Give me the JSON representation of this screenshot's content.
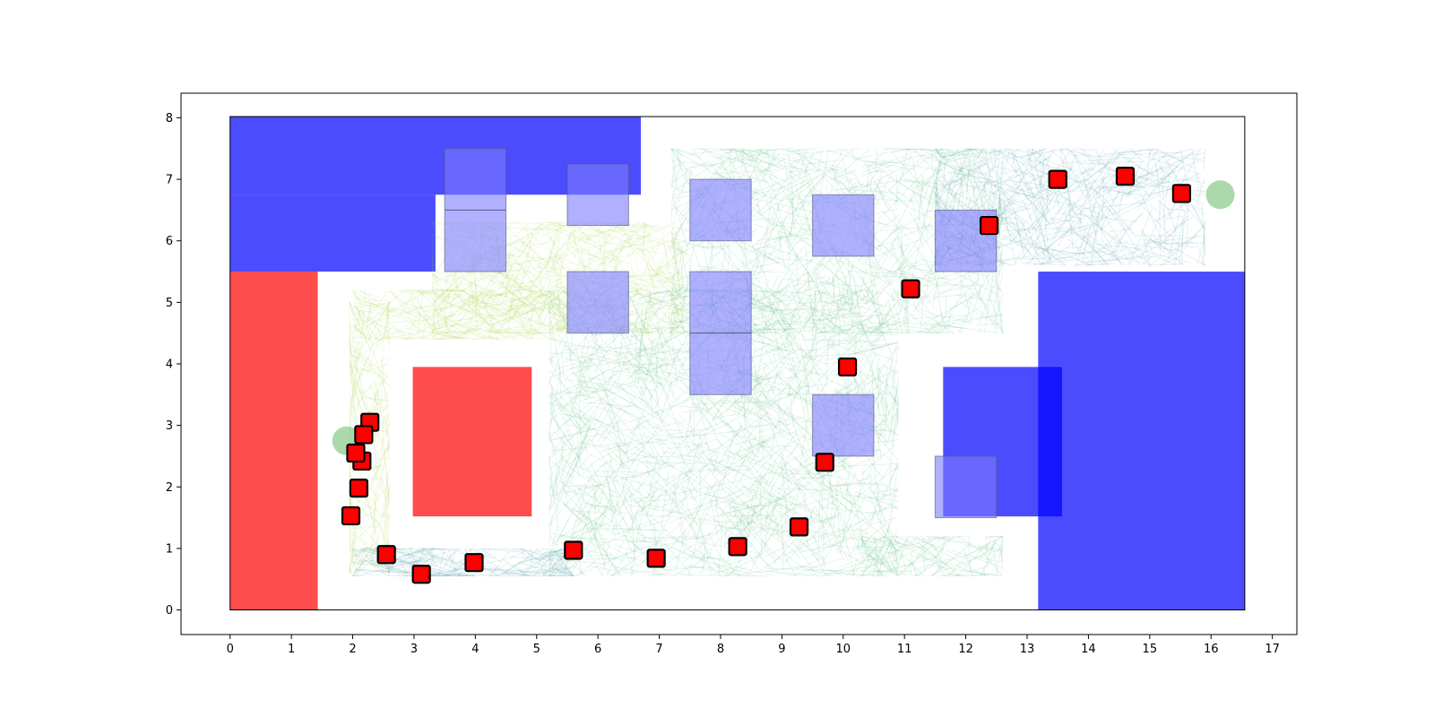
{
  "chart_data": {
    "type": "scatter",
    "title": "",
    "xlabel": "",
    "ylabel": "",
    "xlim": [
      -0.8,
      17.4
    ],
    "ylim": [
      -0.4,
      8.4
    ],
    "field": {
      "x": [
        0,
        16.55
      ],
      "y": [
        0,
        8.02
      ]
    },
    "grid": false,
    "x_ticks": [
      "0",
      "1",
      "2",
      "3",
      "4",
      "5",
      "6",
      "7",
      "8",
      "9",
      "10",
      "11",
      "12",
      "13",
      "14",
      "15",
      "16",
      "17"
    ],
    "y_ticks": [
      "0",
      "1",
      "2",
      "3",
      "4",
      "5",
      "6",
      "7",
      "8"
    ],
    "colors": {
      "blue_zone": "#0000ff",
      "red_zone": "#ff0000",
      "obstacle": "#7b7bff",
      "trajectory_a": "#3cb371",
      "trajectory_b": "#9acd32",
      "trajectory_c": "#2e8b9a",
      "waypoint": "#ff0000",
      "waypoint_edge": "#000000",
      "goal": "#8fcc8f"
    },
    "zones": [
      {
        "name": "blue-zone-top-left",
        "color": "blue",
        "x0": 0,
        "y0": 6.75,
        "x1": 6.7,
        "y1": 8.02
      },
      {
        "name": "blue-zone-left-block",
        "color": "blue",
        "x0": 0,
        "y0": 5.5,
        "x1": 3.35,
        "y1": 6.75
      },
      {
        "name": "red-zone-left",
        "color": "red",
        "x0": 0,
        "y0": 0,
        "x1": 1.43,
        "y1": 5.5
      },
      {
        "name": "red-zone-center",
        "color": "red",
        "x0": 2.98,
        "y0": 1.52,
        "x1": 4.92,
        "y1": 3.95
      },
      {
        "name": "blue-zone-right",
        "color": "blue",
        "x0": 13.18,
        "y0": 0,
        "x1": 16.55,
        "y1": 5.5
      },
      {
        "name": "blue-zone-right-inner",
        "color": "blue",
        "x0": 11.63,
        "y0": 1.52,
        "x1": 13.57,
        "y1": 3.95
      }
    ],
    "obstacles": [
      {
        "x0": 3.5,
        "y0": 5.5,
        "x1": 4.5,
        "y1": 7.5,
        "divider_y": 6.5
      },
      {
        "x0": 5.5,
        "y0": 6.25,
        "x1": 6.5,
        "y1": 7.25
      },
      {
        "x0": 5.5,
        "y0": 4.5,
        "x1": 6.5,
        "y1": 5.5
      },
      {
        "x0": 7.5,
        "y0": 6.0,
        "x1": 8.5,
        "y1": 7.0
      },
      {
        "x0": 7.5,
        "y0": 3.5,
        "x1": 8.5,
        "y1": 5.5,
        "divider_y": 4.5
      },
      {
        "x0": 9.5,
        "y0": 5.75,
        "x1": 10.5,
        "y1": 6.75
      },
      {
        "x0": 9.5,
        "y0": 2.5,
        "x1": 10.5,
        "y1": 3.5
      },
      {
        "x0": 11.5,
        "y0": 5.5,
        "x1": 12.5,
        "y1": 6.5
      },
      {
        "x0": 11.5,
        "y0": 1.5,
        "x1": 12.5,
        "y1": 2.5
      }
    ],
    "goals": [
      {
        "x": 1.9,
        "y": 2.75
      },
      {
        "x": 16.15,
        "y": 6.75
      }
    ],
    "waypoints": [
      {
        "x": 2.28,
        "y": 3.05
      },
      {
        "x": 2.18,
        "y": 2.85
      },
      {
        "x": 2.15,
        "y": 2.42
      },
      {
        "x": 2.05,
        "y": 2.55
      },
      {
        "x": 2.1,
        "y": 1.98
      },
      {
        "x": 1.97,
        "y": 1.53
      },
      {
        "x": 2.55,
        "y": 0.9
      },
      {
        "x": 3.12,
        "y": 0.58
      },
      {
        "x": 3.98,
        "y": 0.77
      },
      {
        "x": 5.6,
        "y": 0.97
      },
      {
        "x": 6.95,
        "y": 0.84
      },
      {
        "x": 8.28,
        "y": 1.03
      },
      {
        "x": 9.28,
        "y": 1.35
      },
      {
        "x": 9.7,
        "y": 2.4
      },
      {
        "x": 10.07,
        "y": 3.95
      },
      {
        "x": 11.1,
        "y": 5.22
      },
      {
        "x": 12.38,
        "y": 6.25
      },
      {
        "x": 13.5,
        "y": 7.0
      },
      {
        "x": 14.6,
        "y": 7.05
      },
      {
        "x": 15.52,
        "y": 6.77
      }
    ]
  }
}
